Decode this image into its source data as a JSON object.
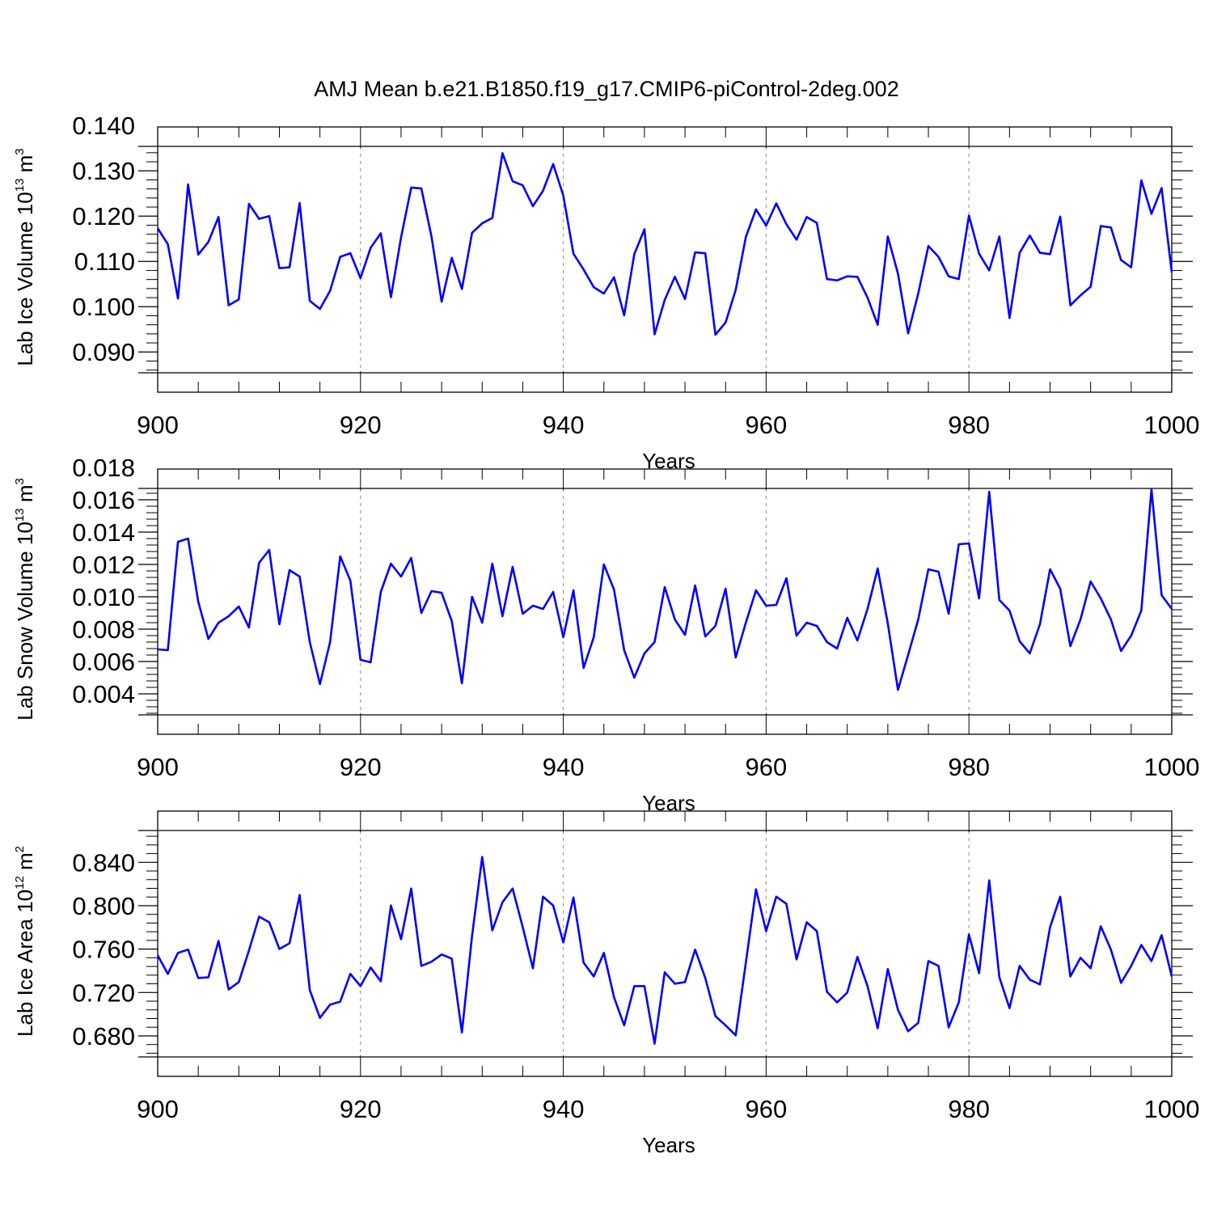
{
  "chart_data": [
    {
      "type": "line",
      "title": "AMJ Mean b.e21.B1850.f19_g17.CMIP6-piControl-2deg.002",
      "xlabel": "Years",
      "ylabel": {
        "text": "Lab Ice Volume 10",
        "sup1": "13",
        "mid": " m",
        "sup2": "3"
      },
      "xlim": [
        900,
        1000
      ],
      "ylim": [
        0.0854,
        0.1354
      ],
      "yticks": [
        0.09,
        0.1,
        0.11,
        0.12,
        0.13,
        0.14
      ],
      "ytick_labels": [
        "0.090",
        "0.100",
        "0.110",
        "0.120",
        "0.130",
        "0.140"
      ],
      "xticks": [
        900,
        920,
        940,
        960,
        980,
        1000
      ],
      "xtick_labels": [
        "900",
        "920",
        "940",
        "960",
        "980",
        "1000"
      ],
      "grid_x": [
        920,
        940,
        960,
        980
      ],
      "series": [
        {
          "name": "Lab Ice Volume",
          "color": "#0000ff",
          "x_start": 900,
          "values": [
            0.1173,
            0.1138,
            0.1018,
            0.127,
            0.1115,
            0.1143,
            0.1198,
            0.1003,
            0.1016,
            0.1227,
            0.1194,
            0.12,
            0.1085,
            0.1087,
            0.1229,
            0.1013,
            0.0995,
            0.1035,
            0.111,
            0.1118,
            0.1063,
            0.113,
            0.1162,
            0.1021,
            0.1153,
            0.1263,
            0.1261,
            0.1155,
            0.1011,
            0.1108,
            0.1039,
            0.1163,
            0.1184,
            0.1196,
            0.1339,
            0.1277,
            0.1268,
            0.1222,
            0.1256,
            0.1315,
            0.1245,
            0.1117,
            0.1082,
            0.1043,
            0.1029,
            0.1065,
            0.0981,
            0.1116,
            0.1171,
            0.0939,
            0.1015,
            0.1066,
            0.1017,
            0.112,
            0.1118,
            0.0938,
            0.0965,
            0.1037,
            0.1154,
            0.1215,
            0.1179,
            0.1228,
            0.1182,
            0.1148,
            0.1198,
            0.1185,
            0.1061,
            0.1058,
            0.1067,
            0.1066,
            0.102,
            0.096,
            0.1155,
            0.1073,
            0.0941,
            0.1029,
            0.1134,
            0.111,
            0.1067,
            0.1061,
            0.1201,
            0.1117,
            0.108,
            0.1155,
            0.0975,
            0.1119,
            0.1157,
            0.1119,
            0.1116,
            0.1199,
            0.1003,
            0.1025,
            0.1044,
            0.1178,
            0.1175,
            0.1103,
            0.1087,
            0.1279,
            0.1205,
            0.1262,
            0.1076
          ]
        }
      ]
    },
    {
      "type": "line",
      "title": "",
      "xlabel": "Years",
      "ylabel": {
        "text": "Lab Snow Volume 10",
        "sup1": "13",
        "mid": " m",
        "sup2": "3"
      },
      "xlim": [
        900,
        1000
      ],
      "ylim": [
        0.0027,
        0.0167
      ],
      "yticks": [
        0.004,
        0.006,
        0.008,
        0.01,
        0.012,
        0.014,
        0.016,
        0.018
      ],
      "ytick_labels": [
        "0.004",
        "0.006",
        "0.008",
        "0.010",
        "0.012",
        "0.014",
        "0.016",
        "0.018"
      ],
      "xticks": [
        900,
        920,
        940,
        960,
        980,
        1000
      ],
      "xtick_labels": [
        "900",
        "920",
        "940",
        "960",
        "980",
        "1000"
      ],
      "grid_x": [
        920,
        940,
        960,
        980
      ],
      "series": [
        {
          "name": "Lab Snow Volume",
          "color": "#0000ff",
          "x_start": 900,
          "values": [
            0.00675,
            0.0067,
            0.0134,
            0.0136,
            0.0097,
            0.0074,
            0.0084,
            0.0088,
            0.0094,
            0.0081,
            0.0121,
            0.0129,
            0.0083,
            0.01165,
            0.01125,
            0.0072,
            0.0046,
            0.0072,
            0.0125,
            0.011,
            0.0061,
            0.00595,
            0.0103,
            0.01205,
            0.01125,
            0.0124,
            0.009,
            0.01035,
            0.01025,
            0.0085,
            0.00465,
            0.01,
            0.0084,
            0.01205,
            0.0088,
            0.01185,
            0.00895,
            0.00945,
            0.00925,
            0.0103,
            0.0075,
            0.0104,
            0.0056,
            0.0075,
            0.012,
            0.01045,
            0.0067,
            0.005,
            0.0065,
            0.0072,
            0.0106,
            0.0086,
            0.00765,
            0.0107,
            0.00755,
            0.0082,
            0.0105,
            0.00625,
            0.0084,
            0.0104,
            0.00945,
            0.0095,
            0.01115,
            0.0076,
            0.0084,
            0.0082,
            0.0072,
            0.0068,
            0.0087,
            0.0073,
            0.00925,
            0.01175,
            0.00835,
            0.00425,
            0.0064,
            0.0086,
            0.0117,
            0.01155,
            0.00895,
            0.01325,
            0.0133,
            0.0099,
            0.0165,
            0.0098,
            0.00915,
            0.00725,
            0.0065,
            0.0083,
            0.0117,
            0.0105,
            0.00695,
            0.0086,
            0.01095,
            0.0099,
            0.0086,
            0.00665,
            0.0076,
            0.00915,
            0.01665,
            0.0101,
            0.00925
          ]
        }
      ]
    },
    {
      "type": "line",
      "title": "",
      "xlabel": "Years",
      "ylabel": {
        "text": "Lab Ice Area 10",
        "sup1": "12",
        "mid": " m",
        "sup2": "2"
      },
      "xlim": [
        900,
        1000
      ],
      "ylim": [
        0.6606,
        0.8693
      ],
      "yticks": [
        0.68,
        0.72,
        0.76,
        0.8,
        0.84
      ],
      "ytick_labels": [
        "0.680",
        "0.720",
        "0.760",
        "0.800",
        "0.840"
      ],
      "xticks": [
        900,
        920,
        940,
        960,
        980,
        1000
      ],
      "xtick_labels": [
        "900",
        "920",
        "940",
        "960",
        "980",
        "1000"
      ],
      "grid_x": [
        920,
        940,
        960,
        980
      ],
      "series": [
        {
          "name": "Lab Ice Area",
          "color": "#0000ff",
          "x_start": 900,
          "values": [
            0.7542,
            0.7371,
            0.7565,
            0.7595,
            0.7333,
            0.734,
            0.7675,
            0.7228,
            0.7296,
            0.7587,
            0.7899,
            0.7847,
            0.7601,
            0.7653,
            0.8098,
            0.7221,
            0.6966,
            0.7088,
            0.7116,
            0.7371,
            0.7259,
            0.743,
            0.7303,
            0.8002,
            0.7691,
            0.8158,
            0.7445,
            0.7483,
            0.755,
            0.7512,
            0.6832,
            0.772,
            0.8449,
            0.7773,
            0.8031,
            0.8158,
            0.7802,
            0.7423,
            0.8083,
            0.8002,
            0.7661,
            0.8076,
            0.7475,
            0.7348,
            0.7565,
            0.7156,
            0.6897,
            0.7259,
            0.7259,
            0.6728,
            0.7386,
            0.7281,
            0.7296,
            0.7595,
            0.7333,
            0.6982,
            0.6897,
            0.6805,
            0.7475,
            0.8151,
            0.7765,
            0.8083,
            0.8017,
            0.7505,
            0.7847,
            0.7765,
            0.7206,
            0.7109,
            0.7199,
            0.7528,
            0.7259,
            0.687,
            0.7416,
            0.7041,
            0.6843,
            0.692,
            0.749,
            0.7445,
            0.6878,
            0.7109,
            0.7735,
            0.7378,
            0.8233,
            0.734,
            0.7056,
            0.7445,
            0.7318,
            0.7274,
            0.7802,
            0.8083,
            0.7348,
            0.752,
            0.7423,
            0.781,
            0.7595,
            0.7289,
            0.7445,
            0.7638,
            0.749,
            0.7728,
            0.7348
          ]
        }
      ]
    }
  ]
}
